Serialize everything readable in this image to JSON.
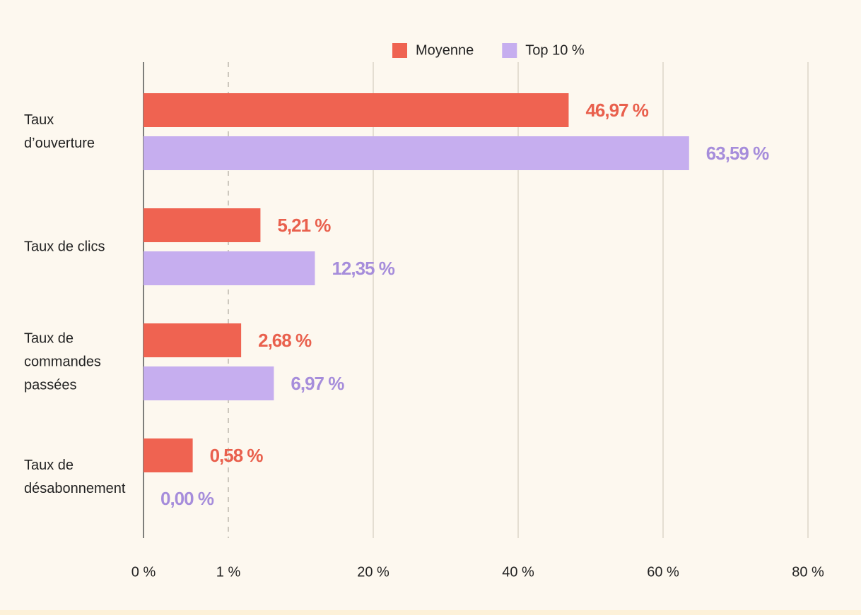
{
  "chart_data": {
    "type": "bar",
    "orientation": "horizontal",
    "categories": [
      "Taux\nd’ouverture",
      "Taux de clics",
      "Taux de\ncommandes\npassées",
      "Taux de\ndésabonnement"
    ],
    "series": [
      {
        "name": "Moyenne",
        "color": "#ef6351",
        "label_color": "#e9604d",
        "values": [
          46.97,
          5.21,
          2.68,
          0.58
        ],
        "value_labels": [
          "46,97 %",
          "5,21 %",
          "2,68 %",
          "0,58 %"
        ]
      },
      {
        "name": "Top 10 %",
        "color": "#c6aeef",
        "label_color": "#a68ddb",
        "values": [
          63.59,
          12.35,
          6.97,
          0.0
        ],
        "value_labels": [
          "63,59 %",
          "12,35 %",
          "6,97 %",
          "0,00 %"
        ]
      }
    ],
    "xlim": [
      0,
      80
    ],
    "xticks": [
      {
        "value": 0,
        "label": "0 %"
      },
      {
        "value": 1,
        "label": "1 %"
      },
      {
        "value": 20,
        "label": "20 %"
      },
      {
        "value": 40,
        "label": "40 %"
      },
      {
        "value": 60,
        "label": "60 %"
      },
      {
        "value": 80,
        "label": "80 %"
      }
    ],
    "grid": true
  }
}
